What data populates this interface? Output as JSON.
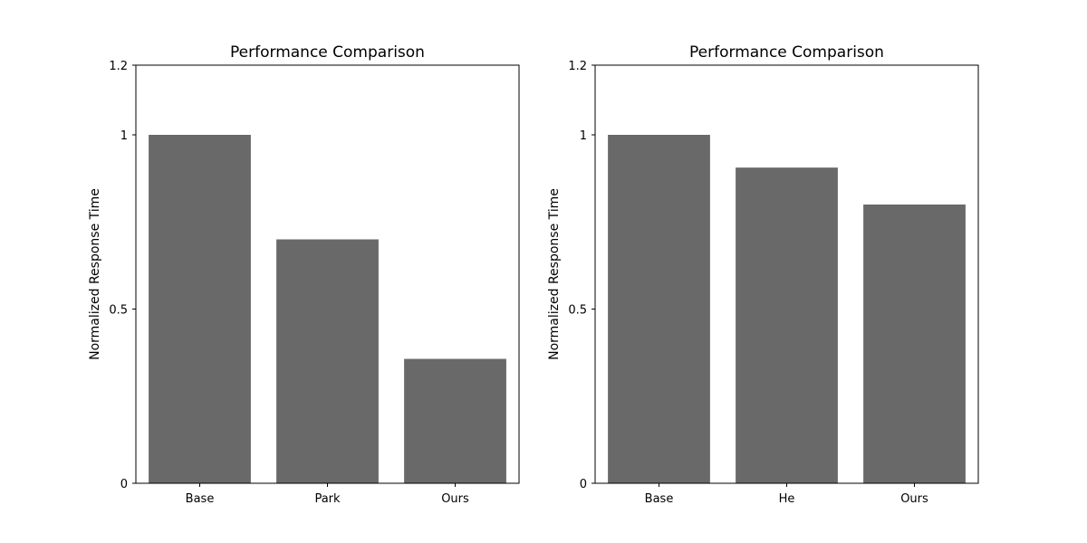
{
  "colors": {
    "bar": "#696969",
    "axis": "#000000",
    "background": "#ffffff"
  },
  "chart_data": [
    {
      "type": "bar",
      "title": "Performance Comparison",
      "xlabel": "",
      "ylabel": "Normalized Response Time",
      "categories": [
        "Base",
        "Park",
        "Ours"
      ],
      "values": [
        1.0,
        0.7,
        0.357
      ],
      "ylim": [
        0,
        1.2
      ],
      "yticks": [
        0,
        0.5,
        1,
        1.2
      ],
      "ytick_labels": [
        "0",
        "0.5",
        "1",
        "1.2"
      ],
      "grid": false,
      "legend": "none"
    },
    {
      "type": "bar",
      "title": "Performance Comparison",
      "xlabel": "",
      "ylabel": "Normalized Response Time",
      "categories": [
        "Base",
        "He",
        "Ours"
      ],
      "values": [
        1.0,
        0.906,
        0.8
      ],
      "ylim": [
        0,
        1.2
      ],
      "yticks": [
        0,
        0.5,
        1,
        1.2
      ],
      "ytick_labels": [
        "0",
        "0.5",
        "1",
        "1.2"
      ],
      "grid": false,
      "legend": "none"
    }
  ]
}
